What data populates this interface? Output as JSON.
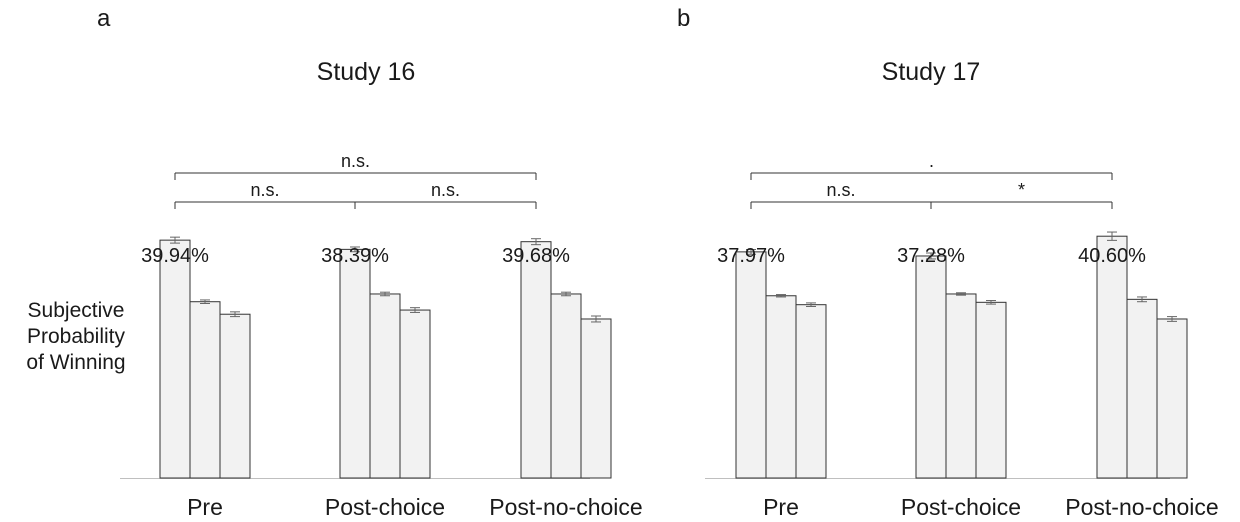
{
  "panels": [
    {
      "letter": "a",
      "title": "Study 16"
    },
    {
      "letter": "b",
      "title": "Study 17"
    }
  ],
  "y_label_lines": [
    "Subjective",
    "Probability",
    "of Winning"
  ],
  "colors": {
    "bar_fill": "#f2f2f2",
    "bar_stroke": "#333333",
    "error_bar": "#666666",
    "axis": "#bfbfbf",
    "text": "#1a1a1a"
  },
  "chart_data": [
    {
      "type": "bar",
      "panel": "a",
      "title": "Study 16",
      "ylabel": "Subjective Probability of Winning",
      "categories": [
        "Pre",
        "Post-choice",
        "Post-no-choice"
      ],
      "value_labels": [
        "39.94%",
        "38.39%",
        "39.68%"
      ],
      "series": [
        {
          "values": [
            39.94,
            38.39,
            39.68
          ],
          "errors": [
            0.5,
            0.4,
            0.5
          ]
        },
        {
          "values": [
            29.6,
            30.9,
            30.9
          ],
          "errors": [
            0.3,
            0.3,
            0.3
          ]
        },
        {
          "values": [
            27.5,
            28.2,
            26.7
          ],
          "errors": [
            0.4,
            0.4,
            0.5
          ]
        }
      ],
      "ylim": [
        0,
        45
      ],
      "comparisons": [
        {
          "from": "Pre",
          "to": "Post-choice",
          "label": "n.s."
        },
        {
          "from": "Post-choice",
          "to": "Post-no-choice",
          "label": "n.s."
        },
        {
          "from": "Pre",
          "to": "Post-no-choice",
          "label": "n.s."
        }
      ]
    },
    {
      "type": "bar",
      "panel": "b",
      "title": "Study 17",
      "ylabel": "Subjective Probability of Winning",
      "categories": [
        "Pre",
        "Post-choice",
        "Post-no-choice"
      ],
      "value_labels": [
        "37.97%",
        "37.28%",
        "40.60%"
      ],
      "series": [
        {
          "values": [
            37.97,
            37.28,
            40.6
          ],
          "errors": [
            0.4,
            0.5,
            0.7
          ]
        },
        {
          "values": [
            30.6,
            30.9,
            30.0
          ],
          "errors": [
            0.2,
            0.2,
            0.4
          ]
        },
        {
          "values": [
            29.1,
            29.5,
            26.7
          ],
          "errors": [
            0.3,
            0.3,
            0.4
          ]
        }
      ],
      "ylim": [
        0,
        45
      ],
      "comparisons": [
        {
          "from": "Pre",
          "to": "Post-choice",
          "label": "n.s."
        },
        {
          "from": "Post-choice",
          "to": "Post-no-choice",
          "label": "*"
        },
        {
          "from": "Pre",
          "to": "Post-no-choice",
          "label": "."
        }
      ]
    }
  ]
}
